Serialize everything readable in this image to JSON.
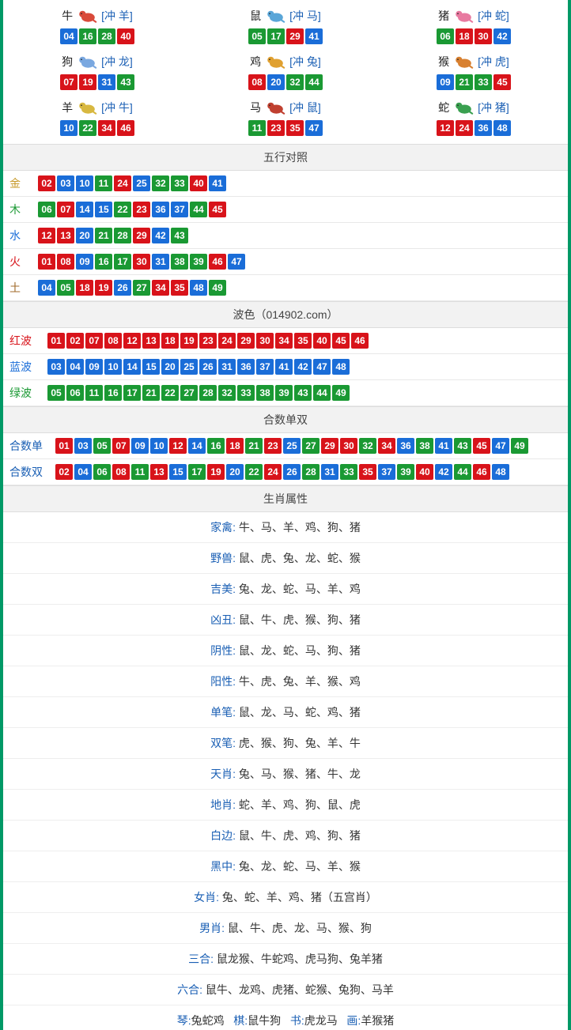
{
  "colors": {
    "red": "#d8131a",
    "blue": "#1a6dd8",
    "green": "#1a9933",
    "border": "#009966",
    "header_bg": "#f2f2f2",
    "link_blue": "#1a5fb4",
    "text": "#333333"
  },
  "zodiac": [
    {
      "name": "牛",
      "conflict": "[冲 羊]",
      "icon_color": "#d94a3a",
      "numbers": [
        {
          "v": "04",
          "c": "blue"
        },
        {
          "v": "16",
          "c": "green"
        },
        {
          "v": "28",
          "c": "green"
        },
        {
          "v": "40",
          "c": "red"
        }
      ]
    },
    {
      "name": "鼠",
      "conflict": "[冲 马]",
      "icon_color": "#5aa6d8",
      "numbers": [
        {
          "v": "05",
          "c": "green"
        },
        {
          "v": "17",
          "c": "green"
        },
        {
          "v": "29",
          "c": "red"
        },
        {
          "v": "41",
          "c": "blue"
        }
      ]
    },
    {
      "name": "猪",
      "conflict": "[冲 蛇]",
      "icon_color": "#e87aa0",
      "numbers": [
        {
          "v": "06",
          "c": "green"
        },
        {
          "v": "18",
          "c": "red"
        },
        {
          "v": "30",
          "c": "red"
        },
        {
          "v": "42",
          "c": "blue"
        }
      ]
    },
    {
      "name": "狗",
      "conflict": "[冲 龙]",
      "icon_color": "#7aa8e0",
      "numbers": [
        {
          "v": "07",
          "c": "red"
        },
        {
          "v": "19",
          "c": "red"
        },
        {
          "v": "31",
          "c": "blue"
        },
        {
          "v": "43",
          "c": "green"
        }
      ]
    },
    {
      "name": "鸡",
      "conflict": "[冲 兔]",
      "icon_color": "#e0a030",
      "numbers": [
        {
          "v": "08",
          "c": "red"
        },
        {
          "v": "20",
          "c": "blue"
        },
        {
          "v": "32",
          "c": "green"
        },
        {
          "v": "44",
          "c": "green"
        }
      ]
    },
    {
      "name": "猴",
      "conflict": "[冲 虎]",
      "icon_color": "#d88030",
      "numbers": [
        {
          "v": "09",
          "c": "blue"
        },
        {
          "v": "21",
          "c": "green"
        },
        {
          "v": "33",
          "c": "green"
        },
        {
          "v": "45",
          "c": "red"
        }
      ]
    },
    {
      "name": "羊",
      "conflict": "[冲 牛]",
      "icon_color": "#d8b840",
      "numbers": [
        {
          "v": "10",
          "c": "blue"
        },
        {
          "v": "22",
          "c": "green"
        },
        {
          "v": "34",
          "c": "red"
        },
        {
          "v": "46",
          "c": "red"
        }
      ]
    },
    {
      "name": "马",
      "conflict": "[冲 鼠]",
      "icon_color": "#c04030",
      "numbers": [
        {
          "v": "11",
          "c": "green"
        },
        {
          "v": "23",
          "c": "red"
        },
        {
          "v": "35",
          "c": "red"
        },
        {
          "v": "47",
          "c": "blue"
        }
      ]
    },
    {
      "name": "蛇",
      "conflict": "[冲 猪]",
      "icon_color": "#3aa050",
      "numbers": [
        {
          "v": "12",
          "c": "red"
        },
        {
          "v": "24",
          "c": "red"
        },
        {
          "v": "36",
          "c": "blue"
        },
        {
          "v": "48",
          "c": "blue"
        }
      ]
    }
  ],
  "wuxing": {
    "title": "五行对照",
    "rows": [
      {
        "label": "金",
        "label_color": "#c79a2a",
        "numbers": [
          {
            "v": "02",
            "c": "red"
          },
          {
            "v": "03",
            "c": "blue"
          },
          {
            "v": "10",
            "c": "blue"
          },
          {
            "v": "11",
            "c": "green"
          },
          {
            "v": "24",
            "c": "red"
          },
          {
            "v": "25",
            "c": "blue"
          },
          {
            "v": "32",
            "c": "green"
          },
          {
            "v": "33",
            "c": "green"
          },
          {
            "v": "40",
            "c": "red"
          },
          {
            "v": "41",
            "c": "blue"
          }
        ]
      },
      {
        "label": "木",
        "label_color": "#1a9933",
        "numbers": [
          {
            "v": "06",
            "c": "green"
          },
          {
            "v": "07",
            "c": "red"
          },
          {
            "v": "14",
            "c": "blue"
          },
          {
            "v": "15",
            "c": "blue"
          },
          {
            "v": "22",
            "c": "green"
          },
          {
            "v": "23",
            "c": "red"
          },
          {
            "v": "36",
            "c": "blue"
          },
          {
            "v": "37",
            "c": "blue"
          },
          {
            "v": "44",
            "c": "green"
          },
          {
            "v": "45",
            "c": "red"
          }
        ]
      },
      {
        "label": "水",
        "label_color": "#1a6dd8",
        "numbers": [
          {
            "v": "12",
            "c": "red"
          },
          {
            "v": "13",
            "c": "red"
          },
          {
            "v": "20",
            "c": "blue"
          },
          {
            "v": "21",
            "c": "green"
          },
          {
            "v": "28",
            "c": "green"
          },
          {
            "v": "29",
            "c": "red"
          },
          {
            "v": "42",
            "c": "blue"
          },
          {
            "v": "43",
            "c": "green"
          }
        ]
      },
      {
        "label": "火",
        "label_color": "#d8131a",
        "numbers": [
          {
            "v": "01",
            "c": "red"
          },
          {
            "v": "08",
            "c": "red"
          },
          {
            "v": "09",
            "c": "blue"
          },
          {
            "v": "16",
            "c": "green"
          },
          {
            "v": "17",
            "c": "green"
          },
          {
            "v": "30",
            "c": "red"
          },
          {
            "v": "31",
            "c": "blue"
          },
          {
            "v": "38",
            "c": "green"
          },
          {
            "v": "39",
            "c": "green"
          },
          {
            "v": "46",
            "c": "red"
          },
          {
            "v": "47",
            "c": "blue"
          }
        ]
      },
      {
        "label": "土",
        "label_color": "#a06a2a",
        "numbers": [
          {
            "v": "04",
            "c": "blue"
          },
          {
            "v": "05",
            "c": "green"
          },
          {
            "v": "18",
            "c": "red"
          },
          {
            "v": "19",
            "c": "red"
          },
          {
            "v": "26",
            "c": "blue"
          },
          {
            "v": "27",
            "c": "green"
          },
          {
            "v": "34",
            "c": "red"
          },
          {
            "v": "35",
            "c": "red"
          },
          {
            "v": "48",
            "c": "blue"
          },
          {
            "v": "49",
            "c": "green"
          }
        ]
      }
    ]
  },
  "bose": {
    "title": "波色（014902.com）",
    "rows": [
      {
        "label": "红波",
        "label_color": "#d8131a",
        "numbers": [
          {
            "v": "01",
            "c": "red"
          },
          {
            "v": "02",
            "c": "red"
          },
          {
            "v": "07",
            "c": "red"
          },
          {
            "v": "08",
            "c": "red"
          },
          {
            "v": "12",
            "c": "red"
          },
          {
            "v": "13",
            "c": "red"
          },
          {
            "v": "18",
            "c": "red"
          },
          {
            "v": "19",
            "c": "red"
          },
          {
            "v": "23",
            "c": "red"
          },
          {
            "v": "24",
            "c": "red"
          },
          {
            "v": "29",
            "c": "red"
          },
          {
            "v": "30",
            "c": "red"
          },
          {
            "v": "34",
            "c": "red"
          },
          {
            "v": "35",
            "c": "red"
          },
          {
            "v": "40",
            "c": "red"
          },
          {
            "v": "45",
            "c": "red"
          },
          {
            "v": "46",
            "c": "red"
          }
        ]
      },
      {
        "label": "蓝波",
        "label_color": "#1a6dd8",
        "numbers": [
          {
            "v": "03",
            "c": "blue"
          },
          {
            "v": "04",
            "c": "blue"
          },
          {
            "v": "09",
            "c": "blue"
          },
          {
            "v": "10",
            "c": "blue"
          },
          {
            "v": "14",
            "c": "blue"
          },
          {
            "v": "15",
            "c": "blue"
          },
          {
            "v": "20",
            "c": "blue"
          },
          {
            "v": "25",
            "c": "blue"
          },
          {
            "v": "26",
            "c": "blue"
          },
          {
            "v": "31",
            "c": "blue"
          },
          {
            "v": "36",
            "c": "blue"
          },
          {
            "v": "37",
            "c": "blue"
          },
          {
            "v": "41",
            "c": "blue"
          },
          {
            "v": "42",
            "c": "blue"
          },
          {
            "v": "47",
            "c": "blue"
          },
          {
            "v": "48",
            "c": "blue"
          }
        ]
      },
      {
        "label": "绿波",
        "label_color": "#1a9933",
        "numbers": [
          {
            "v": "05",
            "c": "green"
          },
          {
            "v": "06",
            "c": "green"
          },
          {
            "v": "11",
            "c": "green"
          },
          {
            "v": "16",
            "c": "green"
          },
          {
            "v": "17",
            "c": "green"
          },
          {
            "v": "21",
            "c": "green"
          },
          {
            "v": "22",
            "c": "green"
          },
          {
            "v": "27",
            "c": "green"
          },
          {
            "v": "28",
            "c": "green"
          },
          {
            "v": "32",
            "c": "green"
          },
          {
            "v": "33",
            "c": "green"
          },
          {
            "v": "38",
            "c": "green"
          },
          {
            "v": "39",
            "c": "green"
          },
          {
            "v": "43",
            "c": "green"
          },
          {
            "v": "44",
            "c": "green"
          },
          {
            "v": "49",
            "c": "green"
          }
        ]
      }
    ]
  },
  "heshu": {
    "title": "合数单双",
    "rows": [
      {
        "label": "合数单",
        "label_color": "#1a5fb4",
        "numbers": [
          {
            "v": "01",
            "c": "red"
          },
          {
            "v": "03",
            "c": "blue"
          },
          {
            "v": "05",
            "c": "green"
          },
          {
            "v": "07",
            "c": "red"
          },
          {
            "v": "09",
            "c": "blue"
          },
          {
            "v": "10",
            "c": "blue"
          },
          {
            "v": "12",
            "c": "red"
          },
          {
            "v": "14",
            "c": "blue"
          },
          {
            "v": "16",
            "c": "green"
          },
          {
            "v": "18",
            "c": "red"
          },
          {
            "v": "21",
            "c": "green"
          },
          {
            "v": "23",
            "c": "red"
          },
          {
            "v": "25",
            "c": "blue"
          },
          {
            "v": "27",
            "c": "green"
          },
          {
            "v": "29",
            "c": "red"
          },
          {
            "v": "30",
            "c": "red"
          },
          {
            "v": "32",
            "c": "green"
          },
          {
            "v": "34",
            "c": "red"
          },
          {
            "v": "36",
            "c": "blue"
          },
          {
            "v": "38",
            "c": "green"
          },
          {
            "v": "41",
            "c": "blue"
          },
          {
            "v": "43",
            "c": "green"
          },
          {
            "v": "45",
            "c": "red"
          },
          {
            "v": "47",
            "c": "blue"
          },
          {
            "v": "49",
            "c": "green"
          }
        ]
      },
      {
        "label": "合数双",
        "label_color": "#1a5fb4",
        "numbers": [
          {
            "v": "02",
            "c": "red"
          },
          {
            "v": "04",
            "c": "blue"
          },
          {
            "v": "06",
            "c": "green"
          },
          {
            "v": "08",
            "c": "red"
          },
          {
            "v": "11",
            "c": "green"
          },
          {
            "v": "13",
            "c": "red"
          },
          {
            "v": "15",
            "c": "blue"
          },
          {
            "v": "17",
            "c": "green"
          },
          {
            "v": "19",
            "c": "red"
          },
          {
            "v": "20",
            "c": "blue"
          },
          {
            "v": "22",
            "c": "green"
          },
          {
            "v": "24",
            "c": "red"
          },
          {
            "v": "26",
            "c": "blue"
          },
          {
            "v": "28",
            "c": "green"
          },
          {
            "v": "31",
            "c": "blue"
          },
          {
            "v": "33",
            "c": "green"
          },
          {
            "v": "35",
            "c": "red"
          },
          {
            "v": "37",
            "c": "blue"
          },
          {
            "v": "39",
            "c": "green"
          },
          {
            "v": "40",
            "c": "red"
          },
          {
            "v": "42",
            "c": "blue"
          },
          {
            "v": "44",
            "c": "green"
          },
          {
            "v": "46",
            "c": "red"
          },
          {
            "v": "48",
            "c": "blue"
          }
        ]
      }
    ]
  },
  "shuxing": {
    "title": "生肖属性",
    "rows": [
      {
        "label": "家禽:",
        "value": "牛、马、羊、鸡、狗、猪"
      },
      {
        "label": "野兽:",
        "value": "鼠、虎、兔、龙、蛇、猴"
      },
      {
        "label": "吉美:",
        "value": "兔、龙、蛇、马、羊、鸡"
      },
      {
        "label": "凶丑:",
        "value": "鼠、牛、虎、猴、狗、猪"
      },
      {
        "label": "阴性:",
        "value": "鼠、龙、蛇、马、狗、猪"
      },
      {
        "label": "阳性:",
        "value": "牛、虎、兔、羊、猴、鸡"
      },
      {
        "label": "单笔:",
        "value": "鼠、龙、马、蛇、鸡、猪"
      },
      {
        "label": "双笔:",
        "value": "虎、猴、狗、兔、羊、牛"
      },
      {
        "label": "天肖:",
        "value": "兔、马、猴、猪、牛、龙"
      },
      {
        "label": "地肖:",
        "value": "蛇、羊、鸡、狗、鼠、虎"
      },
      {
        "label": "白边:",
        "value": "鼠、牛、虎、鸡、狗、猪"
      },
      {
        "label": "黑中:",
        "value": "兔、龙、蛇、马、羊、猴"
      },
      {
        "label": "女肖:",
        "value": "兔、蛇、羊、鸡、猪（五宫肖）"
      },
      {
        "label": "男肖:",
        "value": "鼠、牛、虎、龙、马、猴、狗"
      },
      {
        "label": "三合:",
        "value": "鼠龙猴、牛蛇鸡、虎马狗、兔羊猪"
      },
      {
        "label": "六合:",
        "value": "鼠牛、龙鸡、虎猪、蛇猴、兔狗、马羊"
      }
    ]
  },
  "bottom": {
    "items": [
      {
        "label": "琴:",
        "value": "兔蛇鸡"
      },
      {
        "label": "棋:",
        "value": "鼠牛狗"
      },
      {
        "label": "书:",
        "value": "虎龙马"
      },
      {
        "label": "画:",
        "value": "羊猴猪"
      }
    ]
  }
}
